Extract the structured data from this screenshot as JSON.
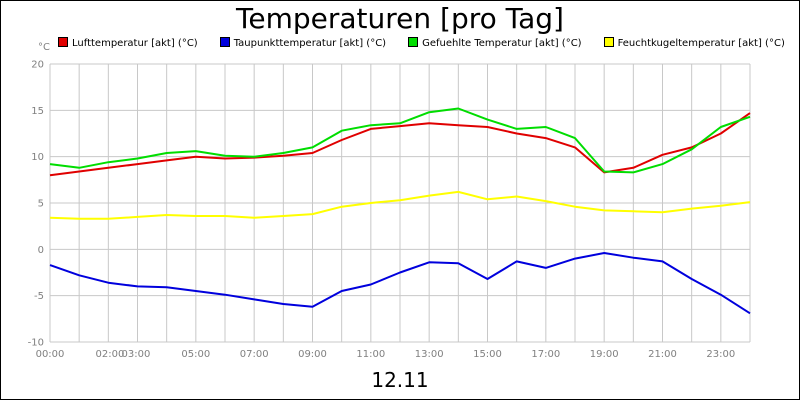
{
  "chart_data": {
    "type": "line",
    "title": "Temperaturen [pro Tag]",
    "xlabel": "12.11",
    "ylabel": "°C",
    "ylim": [
      -10,
      20
    ],
    "yticks": [
      -10,
      -5,
      0,
      5,
      10,
      15,
      20
    ],
    "xticks": [
      "00:00",
      "02:00",
      "03:00",
      "05:00",
      "07:00",
      "09:00",
      "11:00",
      "13:00",
      "15:00",
      "17:00",
      "19:00",
      "21:00",
      "23:00"
    ],
    "xtick_hours": [
      0,
      2,
      3,
      5,
      7,
      9,
      11,
      13,
      15,
      17,
      19,
      21,
      23
    ],
    "x_hours": [
      0,
      1,
      2,
      3,
      4,
      5,
      6,
      7,
      8,
      9,
      10,
      11,
      12,
      13,
      14,
      15,
      16,
      17,
      18,
      19,
      20,
      21,
      22,
      23,
      24
    ],
    "grid": true,
    "legend_position": "top",
    "series": [
      {
        "name": "Lufttemperatur [akt] (°C)",
        "color": "#e00000",
        "values": [
          8.0,
          8.4,
          8.8,
          9.2,
          9.6,
          10.0,
          9.8,
          9.9,
          10.1,
          10.4,
          11.8,
          13.0,
          13.3,
          13.6,
          13.4,
          13.2,
          12.5,
          12.0,
          11.0,
          8.3,
          8.8,
          10.2,
          11.0,
          12.5,
          14.7
        ]
      },
      {
        "name": "Taupunkttemperatur [akt] (°C)",
        "color": "#0000dd",
        "values": [
          -1.7,
          -2.8,
          -3.6,
          -4.0,
          -4.1,
          -4.5,
          -4.9,
          -5.4,
          -5.9,
          -6.2,
          -4.5,
          -3.8,
          -2.5,
          -1.4,
          -1.5,
          -3.2,
          -1.3,
          -2.0,
          -1.0,
          -0.4,
          -0.9,
          -1.3,
          -3.2,
          -4.9,
          -6.9
        ]
      },
      {
        "name": "Gefuehlte Temperatur [akt] (°C)",
        "color": "#00dd00",
        "values": [
          9.2,
          8.8,
          9.4,
          9.8,
          10.4,
          10.6,
          10.1,
          10.0,
          10.4,
          11.0,
          12.8,
          13.4,
          13.6,
          14.8,
          15.2,
          14.0,
          13.0,
          13.2,
          12.0,
          8.4,
          8.3,
          9.2,
          10.8,
          13.2,
          14.3
        ]
      },
      {
        "name": "Feuchtkugeltemperatur [akt] (°C)",
        "color": "#ffff00",
        "values": [
          3.4,
          3.3,
          3.3,
          3.5,
          3.7,
          3.6,
          3.6,
          3.4,
          3.6,
          3.8,
          4.6,
          5.0,
          5.3,
          5.8,
          6.2,
          5.4,
          5.7,
          5.2,
          4.6,
          4.2,
          4.1,
          4.0,
          4.4,
          4.7,
          5.1
        ]
      }
    ]
  }
}
